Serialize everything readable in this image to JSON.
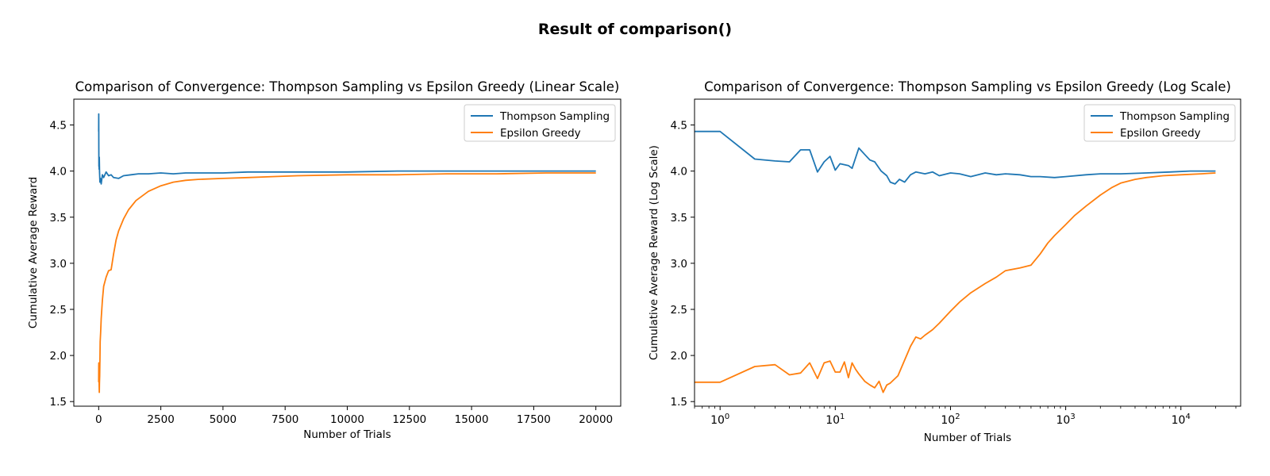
{
  "figure": {
    "title": "Result of comparison()"
  },
  "chart_data": [
    {
      "type": "line",
      "title": "Comparison of Convergence: Thompson Sampling vs Epsilon Greedy (Linear Scale)",
      "xlabel": "Number of Trials",
      "ylabel": "Cumulative Average Reward",
      "xscale": "linear",
      "xlim": [
        -1000,
        21000
      ],
      "ylim": [
        1.45,
        4.78
      ],
      "xticks": [
        0,
        2500,
        5000,
        7500,
        10000,
        12500,
        15000,
        17500,
        20000
      ],
      "xtick_labels": [
        "0",
        "2500",
        "5000",
        "7500",
        "10000",
        "12500",
        "15000",
        "17500",
        "20000"
      ],
      "yticks": [
        1.5,
        2.0,
        2.5,
        3.0,
        3.5,
        4.0,
        4.5
      ],
      "ytick_labels": [
        "1.5",
        "2.0",
        "2.5",
        "3.0",
        "3.5",
        "4.0",
        "4.5"
      ],
      "legend_position": "top-right",
      "grid": false,
      "series": [
        {
          "name": "Thompson Sampling",
          "color": "#1f77b4",
          "x": [
            1,
            3,
            5,
            8,
            12,
            18,
            25,
            35,
            50,
            70,
            100,
            150,
            200,
            300,
            400,
            500,
            600,
            800,
            1000,
            1300,
            1600,
            2000,
            2500,
            3000,
            3500,
            4000,
            5000,
            6000,
            7000,
            8000,
            10000,
            12000,
            14000,
            16000,
            18000,
            20000
          ],
          "y": [
            4.43,
            4.62,
            4.25,
            4.05,
            4.1,
            4.02,
            4.15,
            3.99,
            3.88,
            3.92,
            3.86,
            3.96,
            3.93,
            3.99,
            3.95,
            3.96,
            3.93,
            3.92,
            3.95,
            3.96,
            3.97,
            3.97,
            3.98,
            3.97,
            3.98,
            3.98,
            3.98,
            3.99,
            3.99,
            3.99,
            3.99,
            4.0,
            4.0,
            4.0,
            4.0,
            4.0
          ]
        },
        {
          "name": "Epsilon Greedy",
          "color": "#ff7f0e",
          "x": [
            1,
            3,
            6,
            10,
            15,
            20,
            25,
            30,
            40,
            50,
            60,
            80,
            100,
            150,
            200,
            300,
            400,
            500,
            600,
            700,
            800,
            1000,
            1200,
            1500,
            2000,
            2500,
            3000,
            3500,
            4000,
            5000,
            6000,
            7000,
            8000,
            10000,
            12000,
            14000,
            16000,
            18000,
            20000
          ],
          "y": [
            1.71,
            1.88,
            1.92,
            1.82,
            1.76,
            1.68,
            1.6,
            1.7,
            1.78,
            1.95,
            2.15,
            2.25,
            2.4,
            2.6,
            2.75,
            2.85,
            2.92,
            2.93,
            3.1,
            3.25,
            3.35,
            3.48,
            3.58,
            3.68,
            3.78,
            3.84,
            3.88,
            3.9,
            3.91,
            3.92,
            3.93,
            3.94,
            3.95,
            3.96,
            3.96,
            3.97,
            3.97,
            3.98,
            3.98
          ]
        }
      ]
    },
    {
      "type": "line",
      "title": "Comparison of Convergence: Thompson Sampling vs Epsilon Greedy (Log Scale)",
      "xlabel": "Number of Trials",
      "ylabel": "Cumulative Average Reward (Log Scale)",
      "xscale": "log",
      "xlim": [
        0.6,
        33000
      ],
      "ylim": [
        1.45,
        4.78
      ],
      "xticks": [
        1,
        10,
        100,
        1000,
        10000
      ],
      "xtick_labels": [
        "10^0",
        "10^1",
        "10^2",
        "10^3",
        "10^4"
      ],
      "yticks": [
        1.5,
        2.0,
        2.5,
        3.0,
        3.5,
        4.0,
        4.5
      ],
      "ytick_labels": [
        "1.5",
        "2.0",
        "2.5",
        "3.0",
        "3.5",
        "4.0",
        "4.5"
      ],
      "legend_position": "top-right",
      "grid": false,
      "series": [
        {
          "name": "Thompson Sampling",
          "color": "#1f77b4",
          "x": [
            0.6,
            1,
            2,
            3,
            4,
            5,
            6,
            7,
            8,
            9,
            10,
            11,
            13,
            14,
            16,
            18,
            20,
            22,
            25,
            28,
            30,
            33,
            36,
            40,
            45,
            50,
            60,
            70,
            80,
            100,
            120,
            150,
            200,
            250,
            300,
            400,
            500,
            600,
            800,
            1000,
            1500,
            2000,
            3000,
            5000,
            8000,
            12000,
            15000,
            20000
          ],
          "y": [
            4.43,
            4.43,
            4.13,
            4.11,
            4.1,
            4.23,
            4.23,
            3.99,
            4.1,
            4.16,
            4.01,
            4.08,
            4.06,
            4.03,
            4.25,
            4.18,
            4.12,
            4.1,
            4.0,
            3.95,
            3.88,
            3.86,
            3.91,
            3.88,
            3.96,
            3.99,
            3.97,
            3.99,
            3.95,
            3.98,
            3.97,
            3.94,
            3.98,
            3.96,
            3.97,
            3.96,
            3.94,
            3.94,
            3.93,
            3.94,
            3.96,
            3.97,
            3.97,
            3.98,
            3.99,
            4.0,
            4.0,
            4.0
          ]
        },
        {
          "name": "Epsilon Greedy",
          "color": "#ff7f0e",
          "x": [
            0.6,
            1,
            2,
            3,
            4,
            5,
            6,
            7,
            8,
            9,
            10,
            11,
            12,
            13,
            14,
            15,
            16,
            18,
            20,
            22,
            24,
            26,
            28,
            30,
            35,
            40,
            45,
            50,
            55,
            60,
            70,
            80,
            100,
            120,
            150,
            200,
            250,
            300,
            400,
            500,
            600,
            700,
            800,
            1000,
            1200,
            1500,
            2000,
            2500,
            3000,
            4000,
            5000,
            7000,
            10000,
            15000,
            20000
          ],
          "y": [
            1.71,
            1.71,
            1.88,
            1.9,
            1.79,
            1.81,
            1.92,
            1.75,
            1.92,
            1.94,
            1.82,
            1.82,
            1.93,
            1.76,
            1.92,
            1.85,
            1.8,
            1.72,
            1.68,
            1.65,
            1.72,
            1.6,
            1.68,
            1.7,
            1.78,
            1.95,
            2.1,
            2.2,
            2.18,
            2.22,
            2.28,
            2.35,
            2.48,
            2.58,
            2.68,
            2.78,
            2.85,
            2.92,
            2.95,
            2.98,
            3.1,
            3.22,
            3.3,
            3.42,
            3.52,
            3.62,
            3.74,
            3.82,
            3.87,
            3.91,
            3.93,
            3.95,
            3.96,
            3.97,
            3.98
          ]
        }
      ]
    }
  ]
}
